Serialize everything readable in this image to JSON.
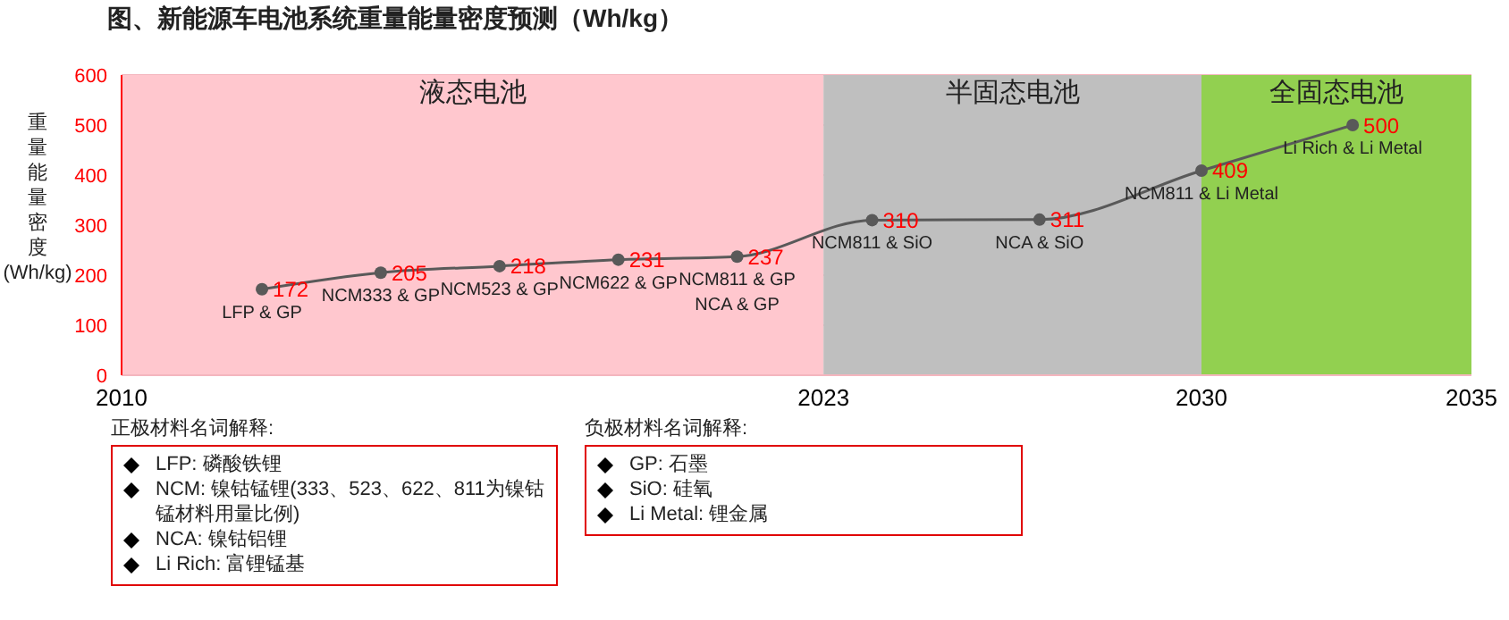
{
  "chart_data": {
    "type": "line",
    "title": "图、新能源车电池系统重量能量密度预测（Wh/kg）",
    "ylabel": "重量能量密度(Wh/kg)",
    "x": [
      2012.6,
      2014.8,
      2017.0,
      2019.2,
      2021.4,
      2023.9,
      2027.0,
      2030.0,
      2032.8
    ],
    "series": [
      {
        "color": "#595959",
        "values": [
          172,
          205,
          218,
          231,
          237,
          310,
          311,
          409,
          500
        ]
      }
    ],
    "xlim": [
      2010,
      2035
    ],
    "xticks": [
      2010,
      2023,
      2030,
      2035
    ],
    "ylim": [
      0,
      600
    ],
    "yticks": [
      0,
      100,
      200,
      300,
      400,
      500,
      600
    ],
    "grid": "y",
    "marker": "circle",
    "data_labels": true,
    "bands": [
      {
        "axis": "x",
        "from": 2010,
        "to": 2023,
        "label": "液态电池",
        "color": "#ffc7ce"
      },
      {
        "axis": "x",
        "from": 2023,
        "to": 2030,
        "label": "半固态电池",
        "color": "#bfbfbf"
      },
      {
        "axis": "x",
        "from": 2030,
        "to": 2035,
        "label": "全固态电池",
        "color": "#92d050"
      }
    ],
    "annotations": [
      {
        "text": "LFP & GP",
        "x": 2012.6,
        "y": 172
      },
      {
        "text": "NCM333 & GP",
        "x": 2014.8,
        "y": 205
      },
      {
        "text": "NCM523 & GP",
        "x": 2017.0,
        "y": 218
      },
      {
        "text": "NCM622 & GP",
        "x": 2019.2,
        "y": 231
      },
      {
        "text": "NCM811 & GP",
        "x": 2021.4,
        "y": 237
      },
      {
        "text": "NCA & GP",
        "x": 2021.4,
        "y": 237
      },
      {
        "text": "NCM811 & SiO",
        "x": 2023.9,
        "y": 310
      },
      {
        "text": "NCA & SiO",
        "x": 2027.0,
        "y": 311
      },
      {
        "text": "NCM811 & Li Metal",
        "x": 2030.0,
        "y": 409
      },
      {
        "text": "Li Rich & Li Metal",
        "x": 2032.8,
        "y": 500
      },
      "正极材料名词解释:\nLFP: 磷酸铁锂\nNCM: 镍钴锰锂(333、523、622、811为镍钴锰材料用量比例)\nNCA: 镍钴铝锂\nLi Rich: 富锂锰基",
      "负极材料名词解释:\nGP: 石墨\nSiO: 硅氧\nLi Metal: 锂金属"
    ]
  }
}
